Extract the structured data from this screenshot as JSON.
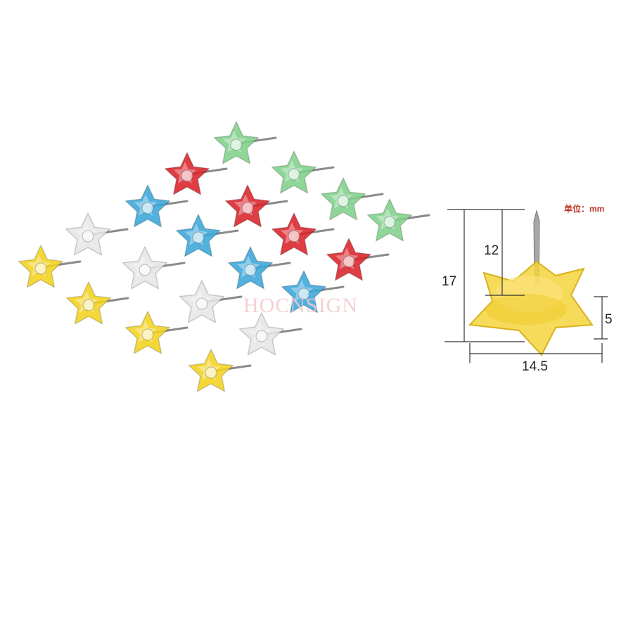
{
  "watermark": "HOCNSIGN",
  "unit_label": "单位：mm",
  "dimensions": {
    "total_height": "17",
    "pin_length": "12",
    "head_thickness": "5",
    "head_width": "14.5"
  },
  "colors": {
    "yellow": "#f3d21e",
    "white": "#e6e6e6",
    "blue": "#3aa6d8",
    "red": "#d9222a",
    "green": "#7fd08a",
    "dimension_line": "#333333",
    "unit_text": "#c0392b"
  },
  "pins": [
    {
      "color": "yellow"
    },
    {
      "color": "yellow"
    },
    {
      "color": "yellow"
    },
    {
      "color": "yellow"
    },
    {
      "color": "white"
    },
    {
      "color": "white"
    },
    {
      "color": "white"
    },
    {
      "color": "white"
    },
    {
      "color": "blue"
    },
    {
      "color": "blue"
    },
    {
      "color": "blue"
    },
    {
      "color": "blue"
    },
    {
      "color": "red"
    },
    {
      "color": "red"
    },
    {
      "color": "red"
    },
    {
      "color": "red"
    },
    {
      "color": "green"
    },
    {
      "color": "green"
    },
    {
      "color": "green"
    },
    {
      "color": "green"
    }
  ]
}
